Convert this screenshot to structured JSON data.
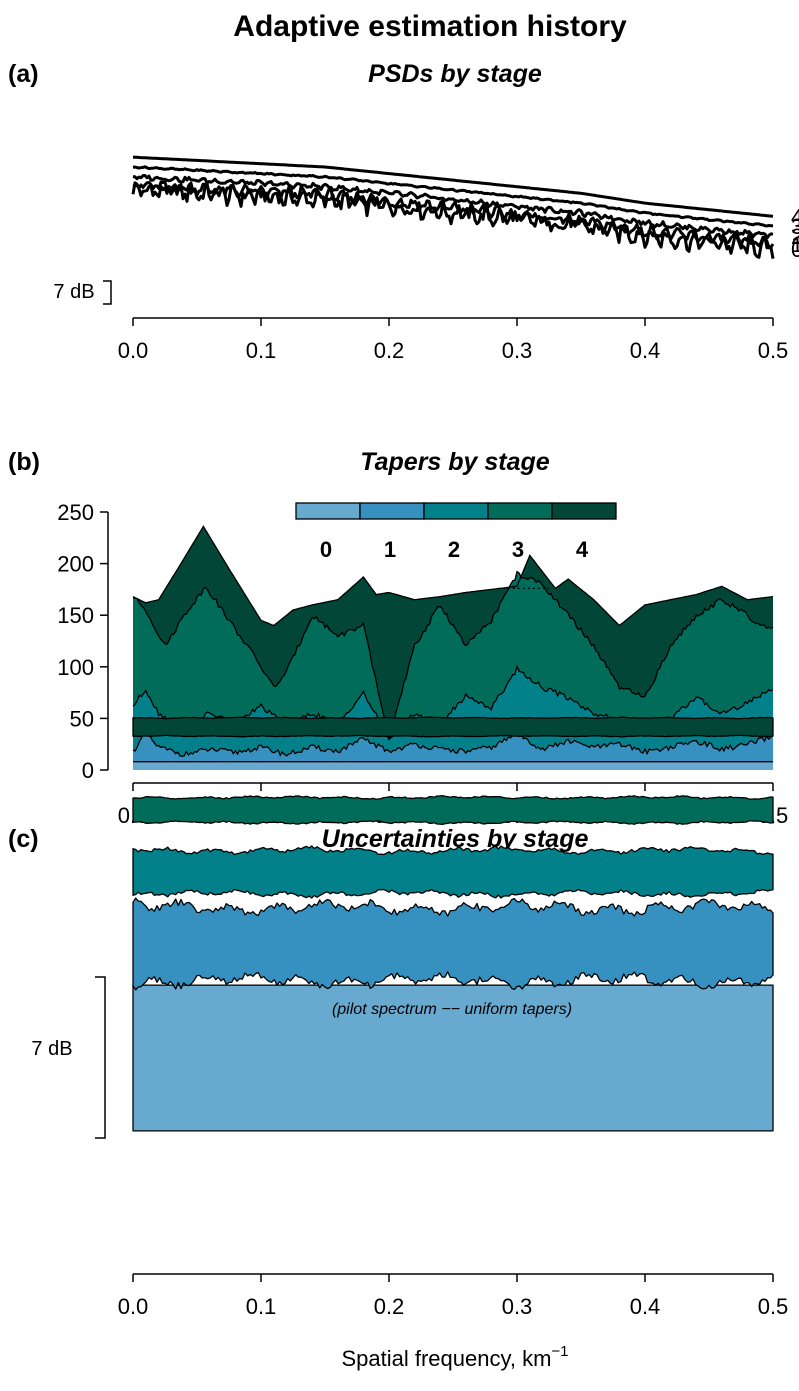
{
  "figure": {
    "title": "Adaptive estimation history",
    "xlabel": "Spatial frequency, km",
    "xlabel_sup": "−1",
    "colors": {
      "stage0": "#67a9cf",
      "stage1": "#3690c0",
      "stage2": "#02818a",
      "stage3": "#016c59",
      "stage4": "#014636",
      "line": "#000000"
    }
  },
  "panels": {
    "a": {
      "label": "(a)",
      "title": "PSDs by stage",
      "scale_label": "7 dB"
    },
    "b": {
      "label": "(b)",
      "title": "Tapers by stage"
    },
    "c": {
      "label": "(c)",
      "title": "Uncertainties by stage",
      "scale_label": "7 dB",
      "note": "(pilot spectrum −− uniform tapers)"
    }
  },
  "chart_data": [
    {
      "type": "line",
      "panel": "a",
      "title": "PSDs by stage",
      "xlim": [
        0,
        0.5
      ],
      "x_ticks": [
        "0.0",
        "0.1",
        "0.2",
        "0.3",
        "0.4",
        "0.5"
      ],
      "y_units": "dB (curves offset for clarity)",
      "dB_scale_bar": 7,
      "series": [
        {
          "name": "0",
          "x": [
            0,
            0.05,
            0.1,
            0.15,
            0.2,
            0.25,
            0.3,
            0.35,
            0.4,
            0.45,
            0.5
          ],
          "y": [
            0,
            -1,
            -2,
            -3,
            -5,
            -7,
            -9,
            -11,
            -14,
            -16,
            -18
          ],
          "noise": 2.6,
          "offset_dB": 0
        },
        {
          "name": "1",
          "x": [
            0,
            0.05,
            0.1,
            0.15,
            0.2,
            0.25,
            0.3,
            0.35,
            0.4,
            0.45,
            0.5
          ],
          "y": [
            0,
            -1,
            -2,
            -3,
            -5,
            -7,
            -9,
            -11,
            -14,
            -16,
            -18
          ],
          "noise": 1.5,
          "offset_dB": 1.5
        },
        {
          "name": "2",
          "x": [
            0,
            0.05,
            0.1,
            0.15,
            0.2,
            0.25,
            0.3,
            0.35,
            0.4,
            0.45,
            0.5
          ],
          "y": [
            0,
            -1,
            -2,
            -3,
            -5,
            -7,
            -9,
            -11,
            -14,
            -16,
            -18
          ],
          "noise": 0.7,
          "offset_dB": 4.0
        },
        {
          "name": "3",
          "x": [
            0,
            0.05,
            0.1,
            0.15,
            0.2,
            0.25,
            0.3,
            0.35,
            0.4,
            0.45,
            0.5
          ],
          "y": [
            0,
            -1,
            -2,
            -3,
            -5,
            -7,
            -9,
            -11,
            -14,
            -16,
            -18
          ],
          "noise": 0.2,
          "offset_dB": 7.0
        },
        {
          "name": "4",
          "x": [
            0,
            0.05,
            0.1,
            0.15,
            0.2,
            0.25,
            0.3,
            0.35,
            0.4,
            0.45,
            0.5
          ],
          "y": [
            0,
            -1,
            -2,
            -3,
            -5,
            -7,
            -9,
            -11,
            -14,
            -16,
            -18
          ],
          "noise": 0.0,
          "offset_dB": 10.0
        }
      ]
    },
    {
      "type": "area",
      "panel": "b",
      "title": "Tapers by stage",
      "xlim": [
        0,
        0.5
      ],
      "ylim": [
        0,
        250
      ],
      "x_ticks": [
        "0.0",
        "0.1",
        "0.2",
        "0.3",
        "0.4",
        "0.5"
      ],
      "y_ticks": [
        "0",
        "50",
        "100",
        "150",
        "200",
        "250"
      ],
      "legend": {
        "placement": "top-center",
        "labels": [
          "0",
          "1",
          "2",
          "3",
          "4"
        ]
      },
      "series": [
        {
          "name": "0",
          "x": [
            0,
            0.5
          ],
          "y": [
            8,
            8
          ]
        },
        {
          "name": "1",
          "x": [
            0,
            0.01,
            0.02,
            0.04,
            0.06,
            0.08,
            0.1,
            0.12,
            0.14,
            0.16,
            0.18,
            0.2,
            0.22,
            0.24,
            0.26,
            0.28,
            0.3,
            0.32,
            0.34,
            0.36,
            0.38,
            0.4,
            0.42,
            0.44,
            0.46,
            0.48,
            0.5
          ],
          "y": [
            18,
            35,
            22,
            15,
            20,
            17,
            22,
            15,
            22,
            18,
            30,
            18,
            25,
            20,
            18,
            22,
            35,
            20,
            28,
            22,
            25,
            18,
            22,
            28,
            20,
            25,
            32
          ]
        },
        {
          "name": "2",
          "x": [
            0,
            0.01,
            0.02,
            0.04,
            0.06,
            0.08,
            0.1,
            0.12,
            0.14,
            0.16,
            0.18,
            0.2,
            0.22,
            0.24,
            0.26,
            0.28,
            0.3,
            0.32,
            0.34,
            0.36,
            0.38,
            0.4,
            0.42,
            0.44,
            0.46,
            0.48,
            0.5
          ],
          "y": [
            62,
            78,
            55,
            40,
            55,
            45,
            62,
            42,
            55,
            45,
            75,
            30,
            55,
            45,
            72,
            60,
            98,
            80,
            70,
            55,
            48,
            40,
            50,
            70,
            55,
            65,
            80
          ]
        },
        {
          "name": "3",
          "x": [
            0,
            0.01,
            0.025,
            0.04,
            0.057,
            0.075,
            0.095,
            0.11,
            0.12,
            0.14,
            0.16,
            0.18,
            0.2,
            0.22,
            0.24,
            0.26,
            0.28,
            0.3,
            0.32,
            0.34,
            0.36,
            0.38,
            0.4,
            0.42,
            0.44,
            0.46,
            0.48,
            0.49,
            0.5
          ],
          "y": [
            168,
            155,
            120,
            150,
            178,
            145,
            110,
            80,
            95,
            150,
            130,
            140,
            30,
            120,
            160,
            120,
            145,
            190,
            180,
            150,
            120,
            80,
            70,
            120,
            150,
            165,
            150,
            138,
            140
          ]
        },
        {
          "name": "4",
          "x": [
            0,
            0.01,
            0.02,
            0.035,
            0.055,
            0.075,
            0.1,
            0.11,
            0.125,
            0.14,
            0.16,
            0.18,
            0.19,
            0.2,
            0.22,
            0.24,
            0.26,
            0.28,
            0.3,
            0.31,
            0.33,
            0.34,
            0.36,
            0.38,
            0.4,
            0.42,
            0.44,
            0.46,
            0.48,
            0.5
          ],
          "y": [
            168,
            162,
            165,
            195,
            236,
            195,
            145,
            140,
            155,
            160,
            165,
            187,
            170,
            172,
            165,
            168,
            172,
            175,
            178,
            208,
            176,
            185,
            165,
            140,
            160,
            165,
            170,
            178,
            165,
            168
          ]
        }
      ]
    },
    {
      "type": "area",
      "panel": "c",
      "title": "Uncertainties by stage",
      "xlim": [
        0,
        0.5
      ],
      "x_ticks": [
        "0.0",
        "0.1",
        "0.2",
        "0.3",
        "0.4",
        "0.5"
      ],
      "dB_scale_bar": 7,
      "series": [
        {
          "name": "0",
          "half_width_dB": 3.2,
          "roughness": 0
        },
        {
          "name": "1",
          "half_width_dB": 1.6,
          "roughness": 0.25
        },
        {
          "name": "2",
          "half_width_dB": 0.95,
          "roughness": 0.12
        },
        {
          "name": "3",
          "half_width_dB": 0.55,
          "roughness": 0.05
        },
        {
          "name": "4",
          "half_width_dB": 0.4,
          "roughness": 0.02
        }
      ]
    }
  ]
}
